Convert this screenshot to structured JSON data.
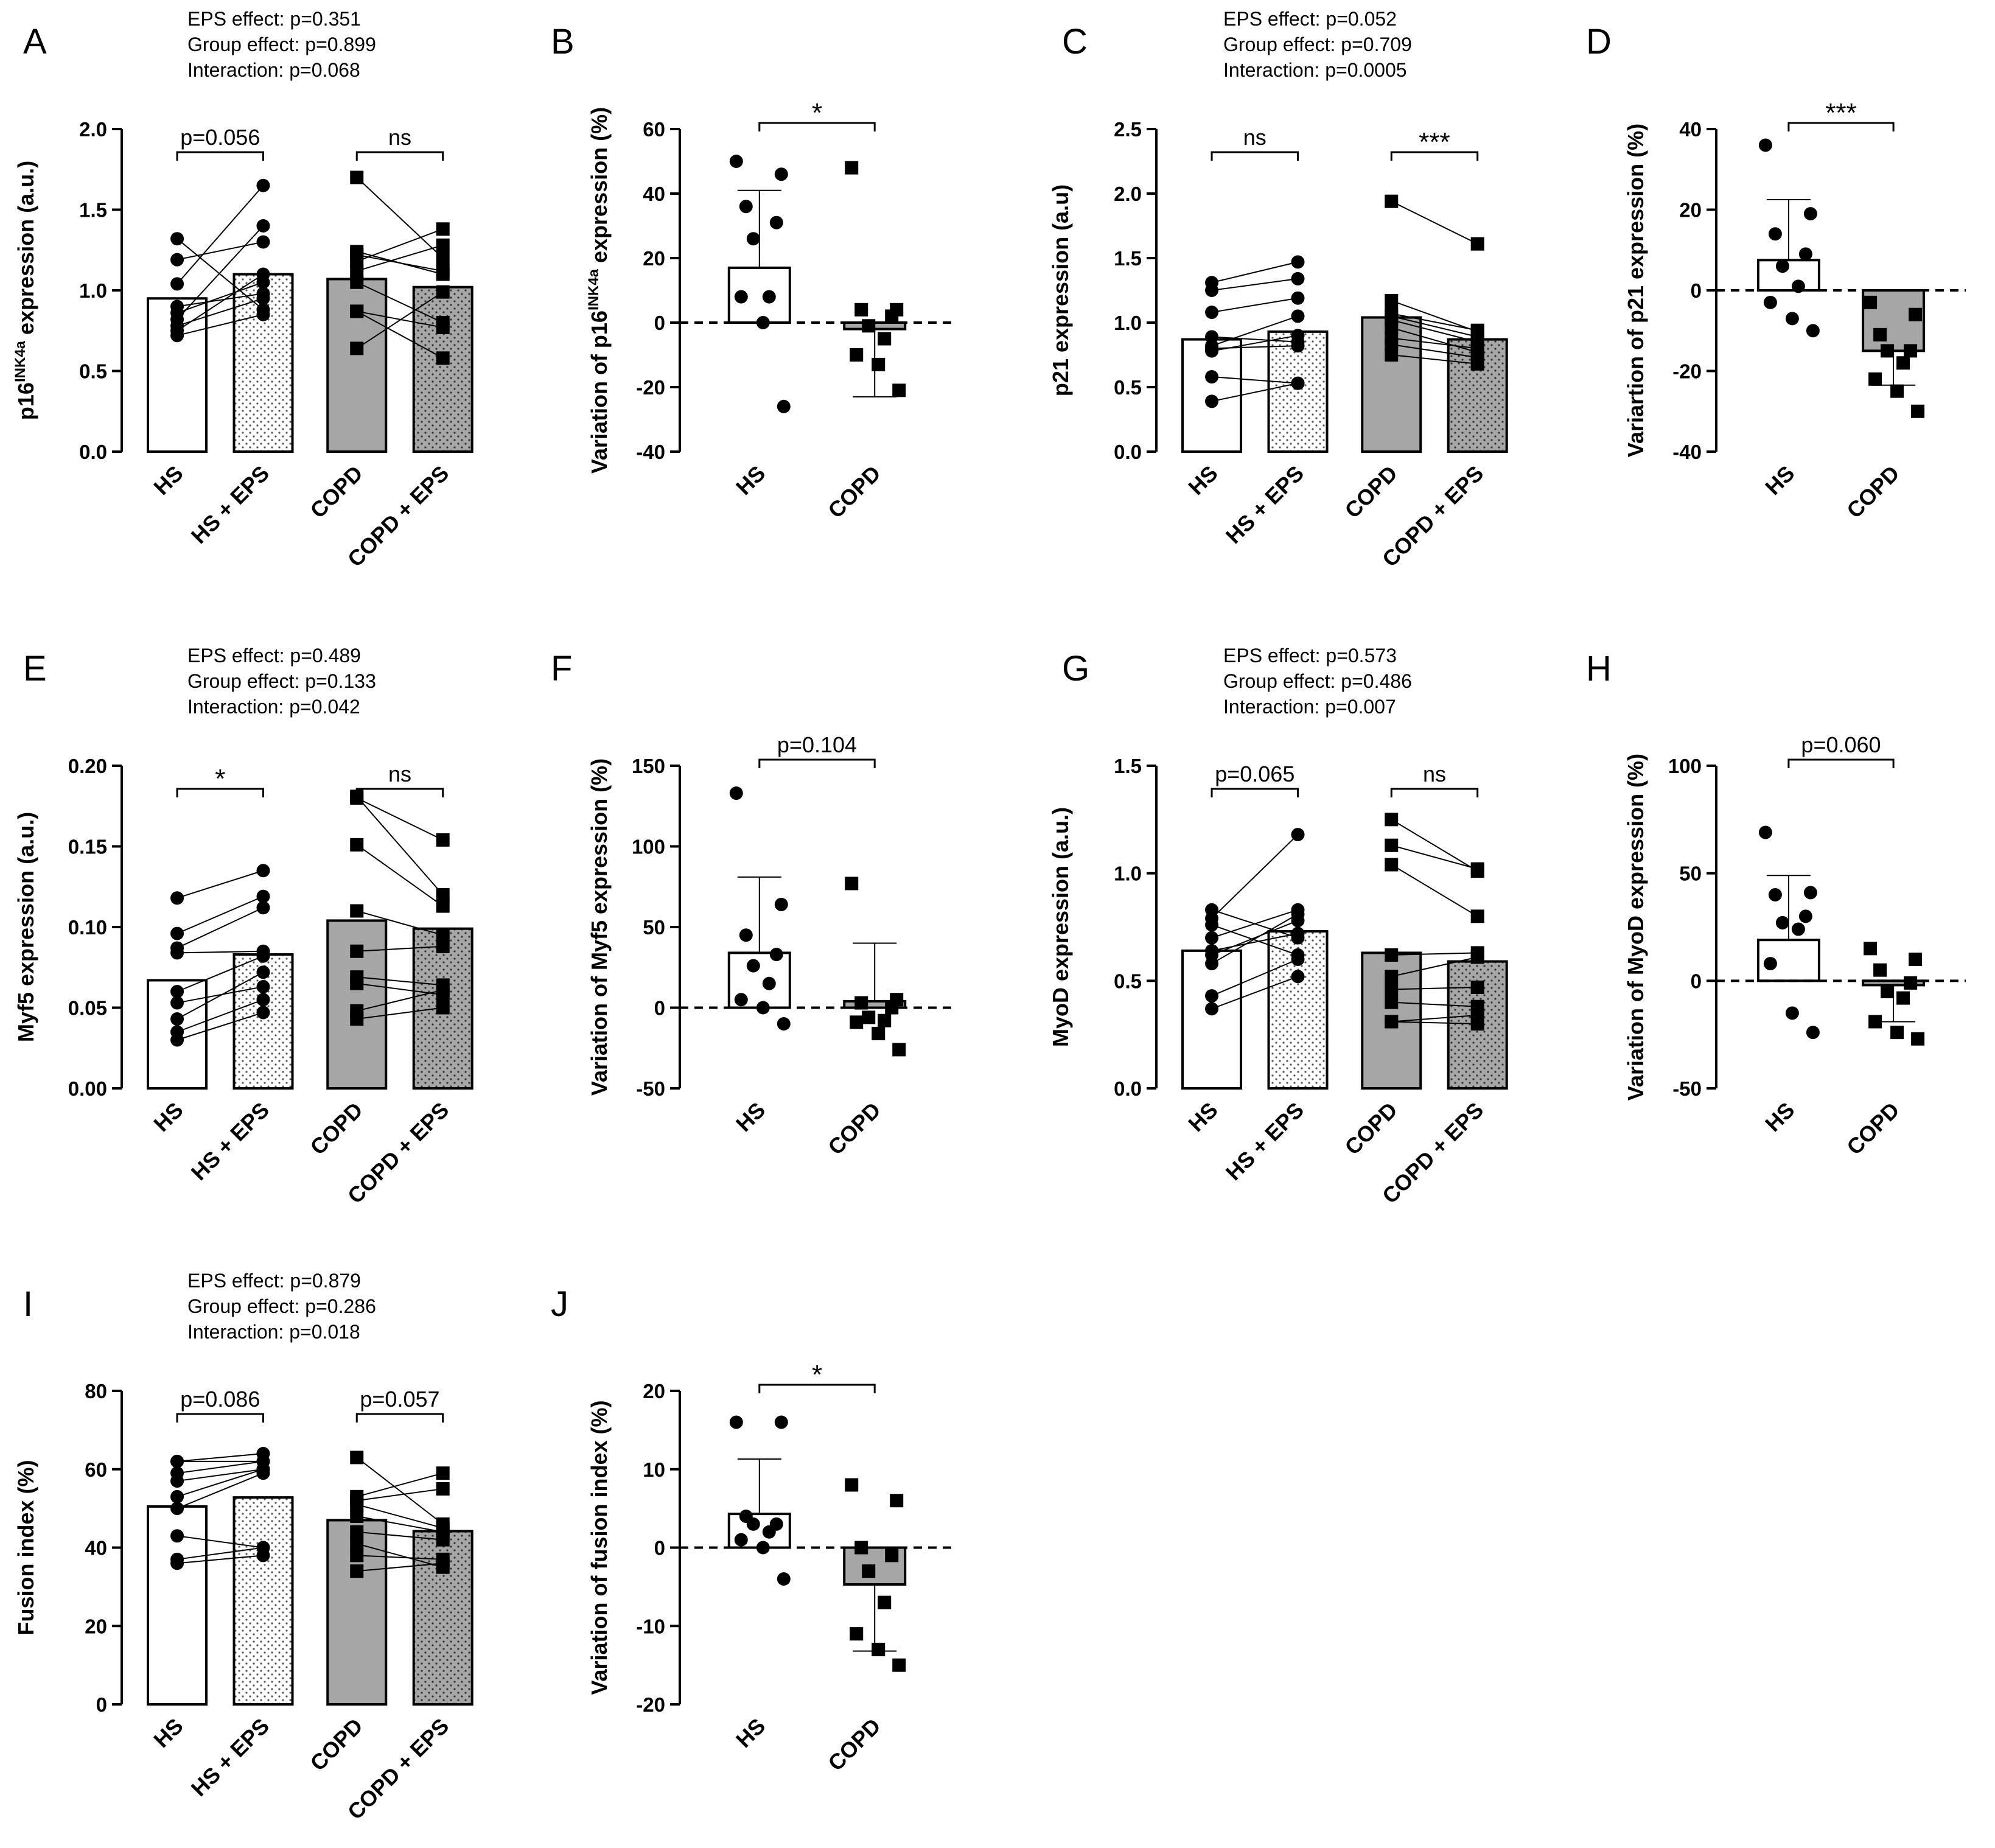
{
  "colors": {
    "hs": "#ffffff",
    "copd": "#a6a6a6",
    "ink": "#000000"
  },
  "panels": [
    {
      "id": "A",
      "letter": "A",
      "kind": "paired",
      "ylabel": "p16INK4a expression (a.u.)",
      "ylabel_parts": [
        {
          "t": "p16"
        },
        {
          "t": "INK4a",
          "sup": true
        },
        {
          "t": " expression (a.u.)"
        }
      ],
      "stats": [
        "EPS effect: p=0.351",
        "Group effect: p=0.899",
        "Interaction: p=0.068"
      ],
      "ylim": [
        0,
        2.0
      ],
      "yticks": [
        {
          "v": 0,
          "l": "0.0"
        },
        {
          "v": 0.5,
          "l": "0.5"
        },
        {
          "v": 1.0,
          "l": "1.0"
        },
        {
          "v": 1.5,
          "l": "1.5"
        },
        {
          "v": 2.0,
          "l": "2.0"
        }
      ],
      "sig": [
        "p=0.056",
        "ns"
      ],
      "xlabels": [
        "HS",
        "HS + EPS",
        "COPD",
        "COPD + EPS"
      ],
      "means": [
        0.95,
        1.1,
        1.07,
        1.02
      ],
      "hs_pairs": [
        [
          0.72,
          0.85
        ],
        [
          0.78,
          0.95
        ],
        [
          0.82,
          1.4
        ],
        [
          0.9,
          0.98
        ],
        [
          1.04,
          1.65
        ],
        [
          1.19,
          1.3
        ],
        [
          1.32,
          0.88
        ],
        [
          0.75,
          1.1
        ],
        [
          0.86,
          1.05
        ]
      ],
      "copd_pairs": [
        [
          0.64,
          0.99
        ],
        [
          0.87,
          0.77
        ],
        [
          0.87,
          0.58
        ],
        [
          1.12,
          1.28
        ],
        [
          1.18,
          1.38
        ],
        [
          1.22,
          1.12
        ],
        [
          1.24,
          1.1
        ],
        [
          1.7,
          1.2
        ],
        [
          1.05,
          0.8
        ]
      ]
    },
    {
      "id": "B",
      "letter": "B",
      "kind": "variation",
      "ylabel": "Variation of p16INK4a expression (%)",
      "ylabel_parts": [
        {
          "t": "Variation of p16"
        },
        {
          "t": "INK4a",
          "sup": true
        },
        {
          "t": " expression (%)"
        }
      ],
      "ylim": [
        -40,
        60
      ],
      "yticks": [
        {
          "v": -40,
          "l": "-40"
        },
        {
          "v": -20,
          "l": "-20"
        },
        {
          "v": 0,
          "l": "0"
        },
        {
          "v": 20,
          "l": "20"
        },
        {
          "v": 40,
          "l": "40"
        },
        {
          "v": 60,
          "l": "60"
        }
      ],
      "sig": "*",
      "xlabels": [
        "HS",
        "COPD"
      ],
      "means": [
        17,
        -2
      ],
      "sd": [
        24,
        21
      ],
      "hs_points": [
        50,
        46,
        36,
        31,
        26,
        8,
        8,
        0,
        -26
      ],
      "copd_points": [
        48,
        4,
        4,
        2,
        -1,
        -5,
        -10,
        -13,
        -21
      ]
    },
    {
      "id": "C",
      "letter": "C",
      "kind": "paired",
      "ylabel": "p21 expression (a.u)",
      "stats": [
        "EPS effect: p=0.052",
        "Group effect: p=0.709",
        "Interaction: p=0.0005"
      ],
      "ylim": [
        0,
        2.5
      ],
      "yticks": [
        {
          "v": 0,
          "l": "0.0"
        },
        {
          "v": 0.5,
          "l": "0.5"
        },
        {
          "v": 1.0,
          "l": "1.0"
        },
        {
          "v": 1.5,
          "l": "1.5"
        },
        {
          "v": 2.0,
          "l": "2.0"
        },
        {
          "v": 2.5,
          "l": "2.5"
        }
      ],
      "sig": [
        "ns",
        "***"
      ],
      "xlabels": [
        "HS",
        "HS + EPS",
        "COPD",
        "COPD + EPS"
      ],
      "means": [
        0.87,
        0.93,
        1.04,
        0.87
      ],
      "hs_pairs": [
        [
          0.39,
          0.53
        ],
        [
          0.58,
          0.53
        ],
        [
          0.78,
          0.9
        ],
        [
          0.82,
          1.05
        ],
        [
          0.89,
          0.85
        ],
        [
          1.08,
          1.19
        ],
        [
          1.25,
          1.34
        ],
        [
          1.31,
          1.47
        ],
        [
          0.8,
          0.82
        ]
      ],
      "copd_pairs": [
        [
          0.75,
          0.68
        ],
        [
          0.83,
          0.73
        ],
        [
          0.96,
          0.77
        ],
        [
          1.02,
          0.85
        ],
        [
          1.05,
          0.89
        ],
        [
          1.07,
          0.94
        ],
        [
          1.17,
          0.93
        ],
        [
          1.94,
          1.61
        ],
        [
          0.88,
          0.8
        ]
      ]
    },
    {
      "id": "D",
      "letter": "D",
      "kind": "variation",
      "ylabel": "Variartion of p21 expression (%)",
      "ylim": [
        -40,
        40
      ],
      "yticks": [
        {
          "v": -40,
          "l": "-40"
        },
        {
          "v": -20,
          "l": "-20"
        },
        {
          "v": 0,
          "l": "0"
        },
        {
          "v": 20,
          "l": "20"
        },
        {
          "v": 40,
          "l": "40"
        }
      ],
      "sig": "***",
      "xlabels": [
        "HS",
        "COPD"
      ],
      "means": [
        7.5,
        -15
      ],
      "sd": [
        15,
        8.5
      ],
      "hs_points": [
        36,
        19,
        14,
        9,
        6,
        1,
        -3,
        -7,
        -10
      ],
      "copd_points": [
        -3,
        -6,
        -11,
        -15,
        -15,
        -18,
        -22,
        -25,
        -30
      ]
    },
    {
      "id": "E",
      "letter": "E",
      "kind": "paired",
      "ylabel": "Myf5 expression (a.u.)",
      "stats": [
        "EPS effect: p=0.489",
        "Group effect: p=0.133",
        "Interaction: p=0.042"
      ],
      "ylim": [
        0,
        0.2
      ],
      "yticks": [
        {
          "v": 0,
          "l": "0.00"
        },
        {
          "v": 0.05,
          "l": "0.05"
        },
        {
          "v": 0.1,
          "l": "0.10"
        },
        {
          "v": 0.15,
          "l": "0.15"
        },
        {
          "v": 0.2,
          "l": "0.20"
        }
      ],
      "sig": [
        "*",
        "ns"
      ],
      "xlabels": [
        "HS",
        "HS + EPS",
        "COPD",
        "COPD + EPS"
      ],
      "means": [
        0.067,
        0.083,
        0.104,
        0.099
      ],
      "hs_pairs": [
        [
          0.03,
          0.047
        ],
        [
          0.035,
          0.055
        ],
        [
          0.043,
          0.072
        ],
        [
          0.053,
          0.063
        ],
        [
          0.084,
          0.085
        ],
        [
          0.087,
          0.112
        ],
        [
          0.096,
          0.119
        ],
        [
          0.118,
          0.135
        ],
        [
          0.06,
          0.082
        ]
      ],
      "copd_pairs": [
        [
          0.043,
          0.05
        ],
        [
          0.048,
          0.061
        ],
        [
          0.065,
          0.058
        ],
        [
          0.069,
          0.064
        ],
        [
          0.085,
          0.088
        ],
        [
          0.151,
          0.113
        ],
        [
          0.18,
          0.154
        ],
        [
          0.181,
          0.12
        ],
        [
          0.11,
          0.095
        ]
      ]
    },
    {
      "id": "F",
      "letter": "F",
      "kind": "variation",
      "ylabel": "Variation of Myf5 expression (%)",
      "ylim": [
        -50,
        150
      ],
      "yticks": [
        {
          "v": -50,
          "l": "-50"
        },
        {
          "v": 0,
          "l": "0"
        },
        {
          "v": 50,
          "l": "50"
        },
        {
          "v": 100,
          "l": "100"
        },
        {
          "v": 150,
          "l": "150"
        }
      ],
      "sig": "p=0.104",
      "xlabels": [
        "HS",
        "COPD"
      ],
      "means": [
        34,
        4
      ],
      "sd": [
        47,
        36
      ],
      "hs_points": [
        133,
        64,
        45,
        33,
        26,
        15,
        5,
        0,
        -10
      ],
      "copd_points": [
        77,
        5,
        3,
        0,
        -6,
        -8,
        -9,
        -16,
        -26
      ]
    },
    {
      "id": "G",
      "letter": "G",
      "kind": "paired",
      "ylabel": "MyoD expression (a.u.)",
      "stats": [
        "EPS effect: p=0.573",
        "Group effect: p=0.486",
        "Interaction: p=0.007"
      ],
      "ylim": [
        0,
        1.5
      ],
      "yticks": [
        {
          "v": 0,
          "l": "0.0"
        },
        {
          "v": 0.5,
          "l": "0.5"
        },
        {
          "v": 1.0,
          "l": "1.0"
        },
        {
          "v": 1.5,
          "l": "1.5"
        }
      ],
      "sig": [
        "p=0.065",
        "ns"
      ],
      "xlabels": [
        "HS",
        "HS + EPS",
        "COPD",
        "COPD + EPS"
      ],
      "means": [
        0.64,
        0.73,
        0.63,
        0.59
      ],
      "hs_pairs": [
        [
          0.37,
          0.52
        ],
        [
          0.43,
          0.6
        ],
        [
          0.58,
          0.81
        ],
        [
          0.62,
          0.78
        ],
        [
          0.64,
          0.72
        ],
        [
          0.7,
          0.83
        ],
        [
          0.76,
          0.62
        ],
        [
          0.79,
          1.18
        ],
        [
          0.83,
          0.7
        ]
      ],
      "copd_pairs": [
        [
          0.31,
          0.3
        ],
        [
          0.31,
          0.34
        ],
        [
          0.4,
          0.38
        ],
        [
          0.46,
          0.47
        ],
        [
          0.52,
          0.61
        ],
        [
          0.62,
          0.63
        ],
        [
          1.04,
          0.8
        ],
        [
          1.13,
          1.02
        ],
        [
          1.25,
          1.01
        ]
      ]
    },
    {
      "id": "H",
      "letter": "H",
      "kind": "variation",
      "ylabel": "Variation of MyoD expression (%)",
      "ylim": [
        -50,
        100
      ],
      "yticks": [
        {
          "v": -50,
          "l": "-50"
        },
        {
          "v": 0,
          "l": "0"
        },
        {
          "v": 50,
          "l": "50"
        },
        {
          "v": 100,
          "l": "100"
        }
      ],
      "sig": "p=0.060",
      "xlabels": [
        "HS",
        "COPD"
      ],
      "means": [
        19,
        -2
      ],
      "sd": [
        30,
        17
      ],
      "hs_points": [
        69,
        41,
        40,
        30,
        27,
        24,
        8,
        -15,
        -24
      ],
      "copd_points": [
        15,
        10,
        5,
        -1,
        -5,
        -8,
        -19,
        -24,
        -27
      ]
    },
    {
      "id": "I",
      "letter": "I",
      "kind": "paired",
      "ylabel": "Fusion index (%)",
      "stats": [
        "EPS effect: p=0.879",
        "Group effect: p=0.286",
        "Interaction: p=0.018"
      ],
      "ylim": [
        0,
        80
      ],
      "yticks": [
        {
          "v": 0,
          "l": "0"
        },
        {
          "v": 20,
          "l": "20"
        },
        {
          "v": 40,
          "l": "40"
        },
        {
          "v": 60,
          "l": "60"
        },
        {
          "v": 80,
          "l": "80"
        }
      ],
      "sig": [
        "p=0.086",
        "p=0.057"
      ],
      "xlabels": [
        "HS",
        "HS + EPS",
        "COPD",
        "COPD + EPS"
      ],
      "means": [
        50.5,
        52.8,
        47.0,
        44.2
      ],
      "hs_pairs": [
        [
          36,
          38
        ],
        [
          37,
          40
        ],
        [
          43,
          40
        ],
        [
          50,
          59
        ],
        [
          53,
          60
        ],
        [
          57,
          60
        ],
        [
          59,
          62
        ],
        [
          62,
          62
        ],
        [
          62,
          64
        ]
      ],
      "copd_pairs": [
        [
          34,
          36
        ],
        [
          38,
          37
        ],
        [
          41,
          35
        ],
        [
          44,
          42
        ],
        [
          48,
          44
        ],
        [
          51,
          45
        ],
        [
          52,
          55
        ],
        [
          53,
          59
        ],
        [
          63,
          46
        ]
      ]
    },
    {
      "id": "J",
      "letter": "J",
      "kind": "variation",
      "ylabel": "Variation of fusion index (%)",
      "ylim": [
        -20,
        20
      ],
      "yticks": [
        {
          "v": -20,
          "l": "-20"
        },
        {
          "v": -10,
          "l": "-10"
        },
        {
          "v": 0,
          "l": "0"
        },
        {
          "v": 10,
          "l": "10"
        },
        {
          "v": 20,
          "l": "20"
        }
      ],
      "sig": "*",
      "xlabels": [
        "HS",
        "COPD"
      ],
      "means": [
        4.3,
        -4.7
      ],
      "sd": [
        7.0,
        8.5
      ],
      "hs_points": [
        16,
        16,
        4,
        3,
        3,
        2,
        1,
        0,
        -4
      ],
      "copd_points": [
        8,
        6,
        0,
        -1,
        -3,
        -7,
        -11,
        -13,
        -15
      ]
    }
  ]
}
